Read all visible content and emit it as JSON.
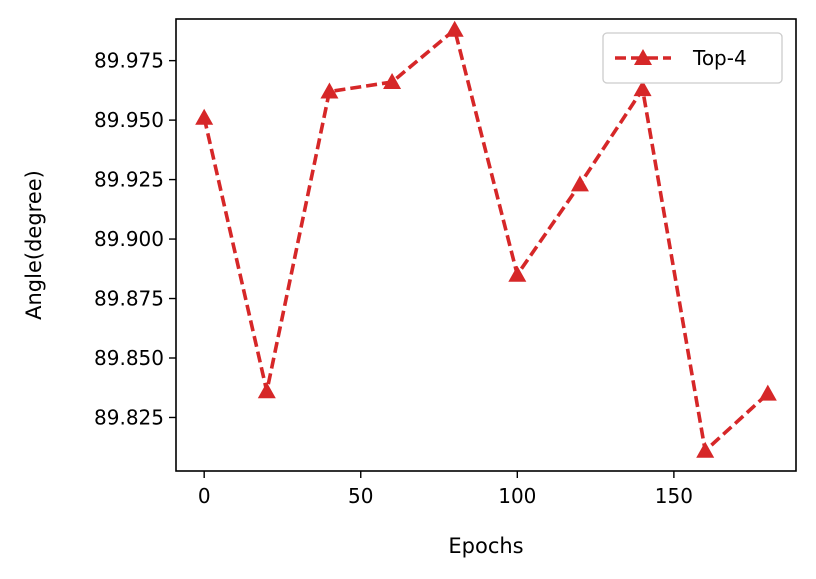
{
  "chart_data": {
    "type": "line",
    "title": "",
    "xlabel": "Epochs",
    "ylabel": "Angle(degree)",
    "xlim": [
      -9,
      189
    ],
    "ylim": [
      89.8025,
      89.9925
    ],
    "x_ticks": [
      0,
      50,
      100,
      150
    ],
    "x_tick_labels": [
      "0",
      "50",
      "100",
      "150"
    ],
    "y_ticks": [
      89.825,
      89.85,
      89.875,
      89.9,
      89.925,
      89.95,
      89.975
    ],
    "y_tick_labels": [
      "89.825",
      "89.850",
      "89.875",
      "89.900",
      "89.925",
      "89.950",
      "89.975"
    ],
    "grid": false,
    "legend_position": "top-right",
    "series": [
      {
        "name": "Top-4",
        "color": "#d62728",
        "line_style": "dashed",
        "marker": "triangle-up",
        "x": [
          0,
          20,
          40,
          60,
          80,
          100,
          120,
          140,
          160,
          180
        ],
        "y": [
          89.951,
          89.836,
          89.962,
          89.966,
          89.988,
          89.885,
          89.923,
          89.963,
          89.811,
          89.835
        ]
      }
    ]
  }
}
